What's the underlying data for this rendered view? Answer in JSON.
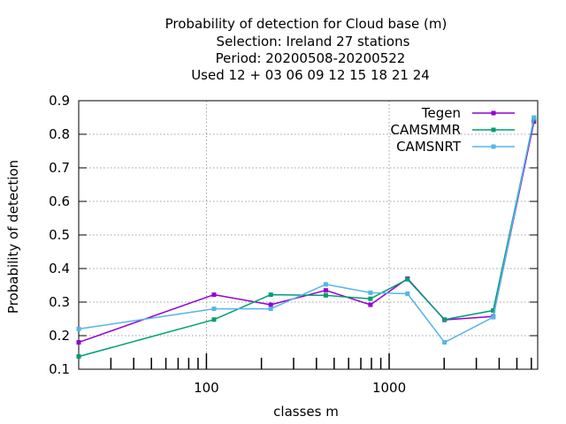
{
  "title": {
    "line1": "Probability of detection  for Cloud base (m)",
    "line2": "Selection: Ireland     27 stations",
    "line3": "Period: 20200508-20200522",
    "line4": "Used  12 + 03 06 09 12 15 18 21 24"
  },
  "chart_data": {
    "type": "line",
    "title": "Probability of detection  for Cloud base (m)",
    "xlabel": "classes m",
    "ylabel": "Probability of detection",
    "xscale": "log",
    "xlim": [
      20,
      6500
    ],
    "ylim": [
      0.1,
      0.9
    ],
    "grid": true,
    "legend_position": "top-right",
    "x_tick_labels": [
      "100",
      "1000"
    ],
    "x_ticks": [
      100,
      1000
    ],
    "y_tick_labels": [
      "0.1",
      "0.2",
      "0.3",
      "0.4",
      "0.5",
      "0.6",
      "0.7",
      "0.8",
      "0.9"
    ],
    "y_ticks": [
      0.1,
      0.2,
      0.3,
      0.4,
      0.5,
      0.6,
      0.7,
      0.8,
      0.9
    ],
    "series": [
      {
        "name": "Tegen",
        "color": "#9400d3",
        "points": [
          [
            20,
            0.18
          ],
          [
            110,
            0.322
          ],
          [
            225,
            0.292
          ],
          [
            450,
            0.335
          ],
          [
            790,
            0.292
          ],
          [
            1260,
            0.37
          ],
          [
            2010,
            0.247
          ],
          [
            3710,
            0.257
          ],
          [
            6200,
            0.838
          ]
        ]
      },
      {
        "name": "CAMSMMR",
        "color": "#009e73",
        "points": [
          [
            20,
            0.138
          ],
          [
            110,
            0.248
          ],
          [
            225,
            0.322
          ],
          [
            450,
            0.32
          ],
          [
            790,
            0.31
          ],
          [
            1260,
            0.368
          ],
          [
            2010,
            0.248
          ],
          [
            3710,
            0.275
          ],
          [
            6200,
            0.845
          ]
        ]
      },
      {
        "name": "CAMSNRT",
        "color": "#56b4e9",
        "points": [
          [
            20,
            0.22
          ],
          [
            110,
            0.28
          ],
          [
            225,
            0.28
          ],
          [
            450,
            0.353
          ],
          [
            790,
            0.328
          ],
          [
            1260,
            0.325
          ],
          [
            2010,
            0.18
          ],
          [
            3710,
            0.255
          ],
          [
            6200,
            0.85
          ]
        ]
      }
    ]
  }
}
